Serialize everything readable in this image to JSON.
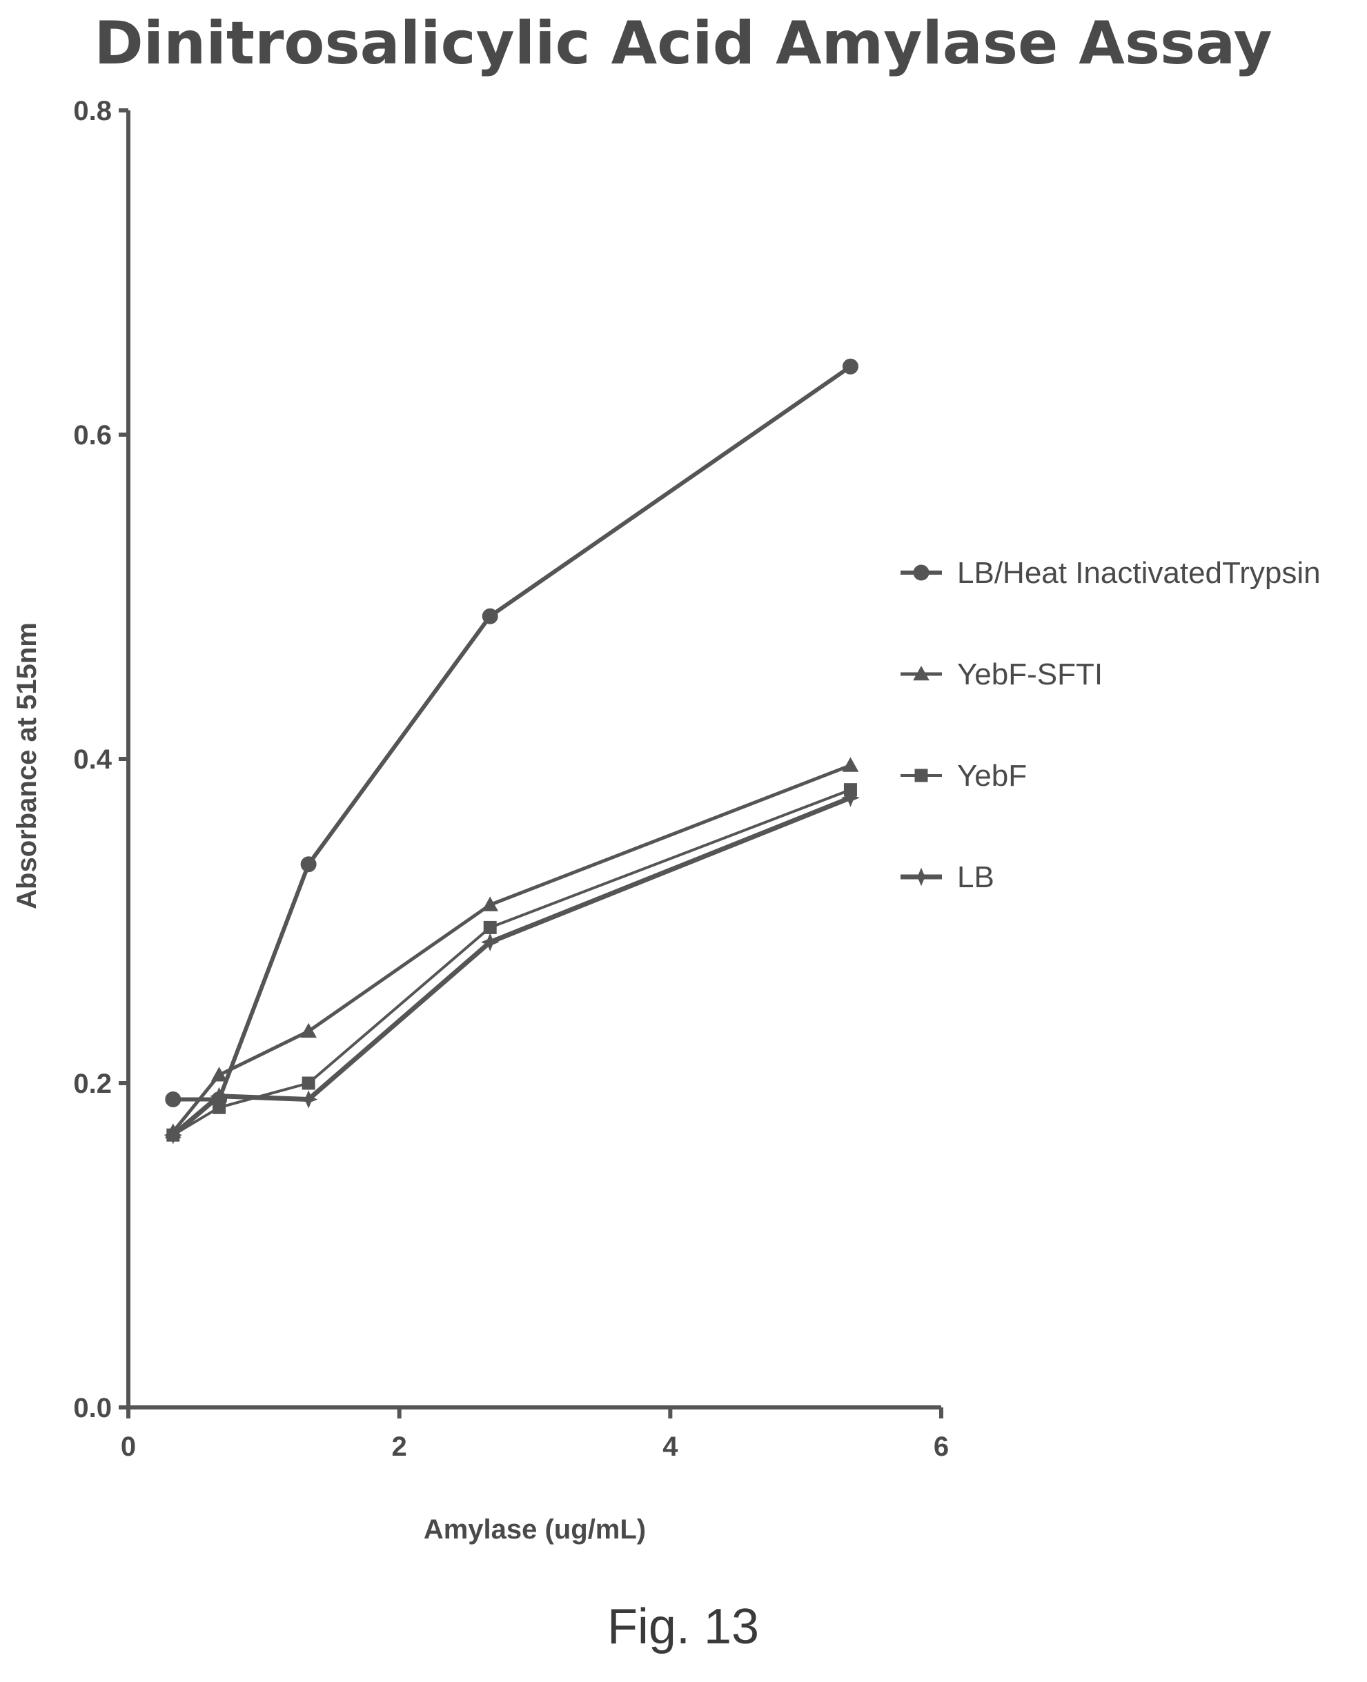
{
  "figure_caption": "Fig. 13",
  "chart_data": {
    "type": "line",
    "title": "Dinitrosalicylic Acid Amylase Assay",
    "xlabel": "Amylase (ug/mL)",
    "ylabel": "Absorbance at 515nm",
    "xlim": [
      0,
      6
    ],
    "ylim": [
      0,
      0.8
    ],
    "xticks": [
      0,
      2,
      4,
      6
    ],
    "xtick_labels": [
      "0",
      "2",
      "4",
      "6"
    ],
    "yticks": [
      0.0,
      0.2,
      0.4,
      0.6,
      0.8
    ],
    "ytick_labels": [
      "0.0",
      "0.2",
      "0.4",
      "0.6",
      "0.8"
    ],
    "grid": false,
    "legend_position": "right",
    "series": [
      {
        "name": "LB/Heat InactivatedTrypsin",
        "marker": "circle",
        "x": [
          0.33,
          0.67,
          1.33,
          2.67,
          5.33
        ],
        "y": [
          0.19,
          0.19,
          0.335,
          0.488,
          0.642
        ]
      },
      {
        "name": "YebF-SFTI",
        "marker": "triangle",
        "x": [
          0.33,
          0.67,
          1.33,
          2.67,
          5.33
        ],
        "y": [
          0.17,
          0.205,
          0.232,
          0.31,
          0.396
        ]
      },
      {
        "name": "YebF",
        "marker": "square",
        "x": [
          0.33,
          0.67,
          1.33,
          2.67,
          5.33
        ],
        "y": [
          0.168,
          0.185,
          0.2,
          0.296,
          0.381
        ]
      },
      {
        "name": "LB",
        "marker": "star",
        "x": [
          0.33,
          0.67,
          1.33,
          2.67,
          5.33
        ],
        "y": [
          0.168,
          0.192,
          0.19,
          0.287,
          0.376
        ]
      }
    ]
  }
}
